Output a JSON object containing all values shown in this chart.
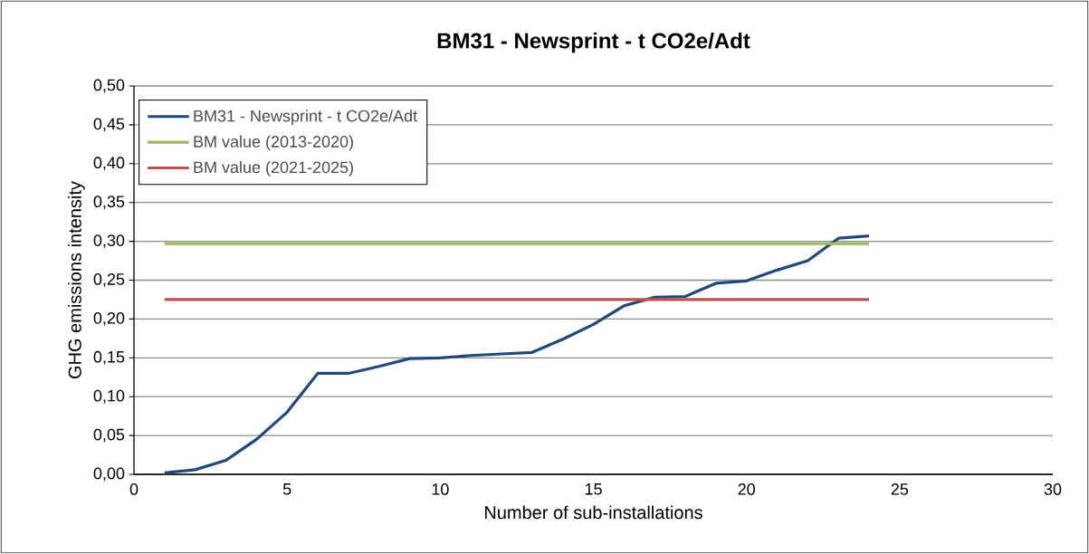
{
  "chart_data": {
    "type": "line",
    "title": "BM31 - Newsprint - t CO2e/Adt",
    "xlabel": "Number of sub-installations",
    "ylabel": "GHG emissions intensity",
    "xlim": [
      0,
      30
    ],
    "xticks": [
      0,
      5,
      10,
      15,
      20,
      25,
      30
    ],
    "ylim": [
      0,
      0.5
    ],
    "yticks": [
      {
        "value": 0,
        "label": "0,00"
      },
      {
        "value": 0.05,
        "label": "0,05"
      },
      {
        "value": 0.1,
        "label": "0,10"
      },
      {
        "value": 0.15,
        "label": "0,15"
      },
      {
        "value": 0.2,
        "label": "0,20"
      },
      {
        "value": 0.25,
        "label": "0,25"
      },
      {
        "value": 0.3,
        "label": "0,30"
      },
      {
        "value": 0.35,
        "label": "0,35"
      },
      {
        "value": 0.4,
        "label": "0,40"
      },
      {
        "value": 0.45,
        "label": "0,45"
      },
      {
        "value": 0.5,
        "label": "0,50"
      }
    ],
    "grid": "y",
    "legend": "top left",
    "series": [
      {
        "name": "BM31 - Newsprint - t CO2e/Adt",
        "color": "#1f497d",
        "x": [
          1,
          2,
          3,
          4,
          5,
          6,
          7,
          8,
          9,
          10,
          11,
          12,
          13,
          14,
          15,
          16,
          17,
          18,
          19,
          20,
          21,
          22,
          23,
          24
        ],
        "values": [
          0.002,
          0.006,
          0.018,
          0.045,
          0.08,
          0.13,
          0.13,
          0.139,
          0.149,
          0.15,
          0.153,
          0.155,
          0.157,
          0.174,
          0.193,
          0.217,
          0.228,
          0.229,
          0.246,
          0.249,
          0.263,
          0.275,
          0.304,
          0.307
        ]
      },
      {
        "name": "BM value (2013-2020)",
        "color": "#9bbb59",
        "x": [
          1,
          24
        ],
        "values": [
          0.297,
          0.297
        ]
      },
      {
        "name": "BM value (2021-2025)",
        "color": "#c0504d",
        "x": [
          1,
          24
        ],
        "values": [
          0.225,
          0.225
        ]
      }
    ]
  }
}
